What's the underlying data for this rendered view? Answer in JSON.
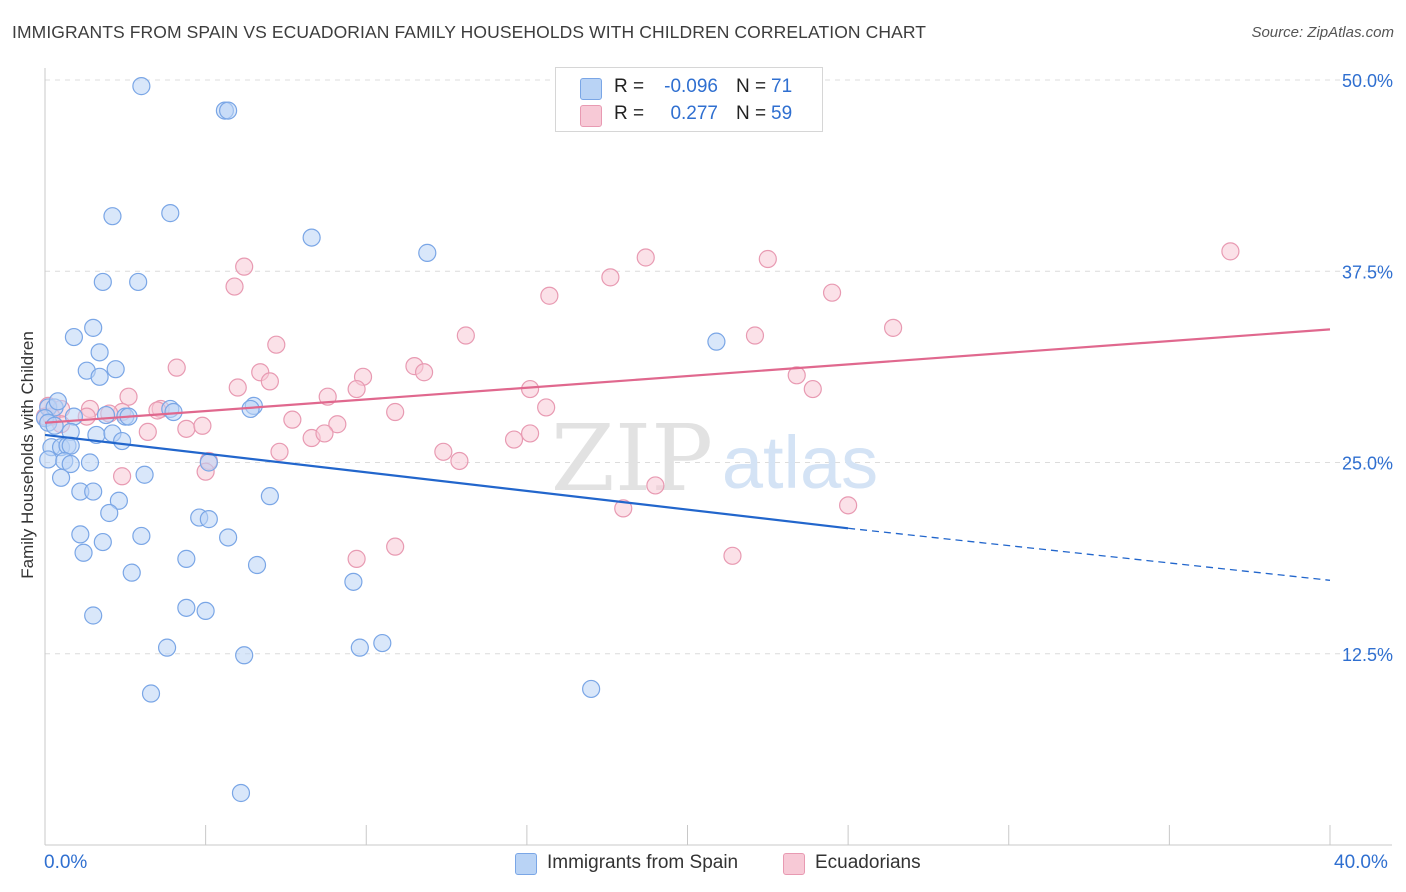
{
  "header": {
    "title": "IMMIGRANTS FROM SPAIN VS ECUADORIAN FAMILY HOUSEHOLDS WITH CHILDREN CORRELATION CHART",
    "source": "Source: ZipAtlas.com"
  },
  "legend": {
    "series1": {
      "r_label": "R =",
      "r_value": "-0.096",
      "n_label": "N =",
      "n_value": "71"
    },
    "series2": {
      "r_label": "R =",
      "r_value": "0.277",
      "n_label": "N =",
      "n_value": "59"
    }
  },
  "watermark": {
    "zip": "ZIP",
    "atlas": "atlas"
  },
  "colors": {
    "blue_fill": "#b9d3f5",
    "blue_stroke": "#7aa6e6",
    "blue_line": "#2266cc",
    "pink_fill": "#f7c9d6",
    "pink_stroke": "#e89ab2",
    "pink_line": "#e0688e",
    "axis_text": "#2f6fd0"
  },
  "chart_data": {
    "type": "scatter",
    "title": "IMMIGRANTS FROM SPAIN VS ECUADORIAN FAMILY HOUSEHOLDS WITH CHILDREN CORRELATION CHART",
    "xlabel": "",
    "ylabel": "Family Households with Children",
    "xlim": [
      0,
      40
    ],
    "ylim": [
      0,
      50
    ],
    "x_tick_labels": [
      "0.0%",
      "40.0%"
    ],
    "y_ticks": [
      12.5,
      25.0,
      37.5,
      50.0
    ],
    "y_tick_labels": [
      "12.5%",
      "25.0%",
      "37.5%",
      "50.0%"
    ],
    "grid": true,
    "legend_position": "top-center",
    "series": [
      {
        "name": "Immigrants from Spain",
        "color": "#7aa6e6",
        "trend": {
          "x": [
            0,
            25
          ],
          "y": [
            26.8,
            20.7
          ],
          "dashed_extension_to": [
            40,
            17.3
          ]
        },
        "points": [
          [
            3.0,
            49.6
          ],
          [
            5.6,
            48.0
          ],
          [
            5.7,
            48.0
          ],
          [
            2.1,
            41.1
          ],
          [
            3.9,
            41.3
          ],
          [
            8.3,
            39.7
          ],
          [
            11.9,
            38.7
          ],
          [
            1.8,
            36.8
          ],
          [
            2.9,
            36.8
          ],
          [
            1.5,
            33.8
          ],
          [
            0.9,
            33.2
          ],
          [
            1.7,
            32.2
          ],
          [
            1.3,
            31.0
          ],
          [
            2.2,
            31.1
          ],
          [
            20.9,
            32.9
          ],
          [
            0.1,
            28.6
          ],
          [
            0.3,
            28.6
          ],
          [
            3.9,
            28.5
          ],
          [
            6.5,
            28.7
          ],
          [
            0.0,
            27.9
          ],
          [
            0.1,
            27.6
          ],
          [
            0.9,
            28.0
          ],
          [
            1.9,
            28.1
          ],
          [
            2.5,
            28.0
          ],
          [
            0.3,
            27.4
          ],
          [
            0.8,
            27.0
          ],
          [
            1.6,
            26.8
          ],
          [
            2.1,
            26.9
          ],
          [
            2.4,
            26.4
          ],
          [
            0.2,
            26.0
          ],
          [
            0.5,
            26.0
          ],
          [
            0.7,
            26.1
          ],
          [
            0.8,
            26.1
          ],
          [
            0.1,
            25.2
          ],
          [
            0.6,
            25.1
          ],
          [
            0.8,
            24.9
          ],
          [
            1.4,
            25.0
          ],
          [
            0.5,
            24.0
          ],
          [
            3.1,
            24.2
          ],
          [
            1.1,
            23.1
          ],
          [
            1.5,
            23.1
          ],
          [
            2.3,
            22.5
          ],
          [
            7.0,
            22.8
          ],
          [
            2.0,
            21.7
          ],
          [
            4.8,
            21.4
          ],
          [
            5.1,
            21.3
          ],
          [
            1.1,
            20.3
          ],
          [
            3.0,
            20.2
          ],
          [
            5.7,
            20.1
          ],
          [
            1.8,
            19.8
          ],
          [
            1.2,
            19.1
          ],
          [
            4.4,
            18.7
          ],
          [
            6.6,
            18.3
          ],
          [
            2.7,
            17.8
          ],
          [
            9.6,
            17.2
          ],
          [
            4.4,
            15.5
          ],
          [
            5.0,
            15.3
          ],
          [
            1.5,
            15.0
          ],
          [
            3.8,
            12.9
          ],
          [
            6.2,
            12.4
          ],
          [
            9.8,
            12.9
          ],
          [
            10.5,
            13.2
          ],
          [
            17.0,
            10.2
          ],
          [
            3.3,
            9.9
          ],
          [
            6.1,
            3.4
          ],
          [
            5.1,
            25.0
          ],
          [
            1.7,
            30.6
          ],
          [
            6.4,
            28.5
          ],
          [
            0.4,
            29.0
          ],
          [
            2.6,
            28.0
          ],
          [
            4.0,
            28.3
          ]
        ]
      },
      {
        "name": "Ecuadorians",
        "color": "#e89ab2",
        "trend": {
          "x": [
            0,
            40
          ],
          "y": [
            27.6,
            33.7
          ]
        },
        "points": [
          [
            36.9,
            38.8
          ],
          [
            18.7,
            38.4
          ],
          [
            22.5,
            38.3
          ],
          [
            6.2,
            37.8
          ],
          [
            17.6,
            37.1
          ],
          [
            5.9,
            36.5
          ],
          [
            24.5,
            36.1
          ],
          [
            15.7,
            35.9
          ],
          [
            26.4,
            33.8
          ],
          [
            13.1,
            33.3
          ],
          [
            7.2,
            32.7
          ],
          [
            22.1,
            33.3
          ],
          [
            4.1,
            31.2
          ],
          [
            11.5,
            31.3
          ],
          [
            6.7,
            30.9
          ],
          [
            7.0,
            30.3
          ],
          [
            9.9,
            30.6
          ],
          [
            11.8,
            30.9
          ],
          [
            23.4,
            30.7
          ],
          [
            6.0,
            29.9
          ],
          [
            9.7,
            29.8
          ],
          [
            15.1,
            29.8
          ],
          [
            23.9,
            29.8
          ],
          [
            2.6,
            29.3
          ],
          [
            8.8,
            29.3
          ],
          [
            0.1,
            28.7
          ],
          [
            0.5,
            28.5
          ],
          [
            1.4,
            28.5
          ],
          [
            2.4,
            28.3
          ],
          [
            3.6,
            28.5
          ],
          [
            10.9,
            28.3
          ],
          [
            15.6,
            28.6
          ],
          [
            0.0,
            28.0
          ],
          [
            2.0,
            28.2
          ],
          [
            3.5,
            28.4
          ],
          [
            7.7,
            27.8
          ],
          [
            4.4,
            27.2
          ],
          [
            4.9,
            27.4
          ],
          [
            9.1,
            27.5
          ],
          [
            3.2,
            27.0
          ],
          [
            8.3,
            26.6
          ],
          [
            8.7,
            26.9
          ],
          [
            14.6,
            26.5
          ],
          [
            15.1,
            26.9
          ],
          [
            0.5,
            27.5
          ],
          [
            1.3,
            28.0
          ],
          [
            7.3,
            25.7
          ],
          [
            12.4,
            25.7
          ],
          [
            12.9,
            25.1
          ],
          [
            5.1,
            25.1
          ],
          [
            5.0,
            24.4
          ],
          [
            2.4,
            24.1
          ],
          [
            19.0,
            23.5
          ],
          [
            18.0,
            22.0
          ],
          [
            25.0,
            22.2
          ],
          [
            9.7,
            18.7
          ],
          [
            10.9,
            19.5
          ],
          [
            21.4,
            18.9
          ],
          [
            0.2,
            28.0
          ]
        ]
      }
    ]
  },
  "x_axis": {
    "left_label": "0.0%",
    "right_label": "40.0%"
  },
  "bottom_legend": {
    "item1": "Immigrants from Spain",
    "item2": "Ecuadorians"
  }
}
